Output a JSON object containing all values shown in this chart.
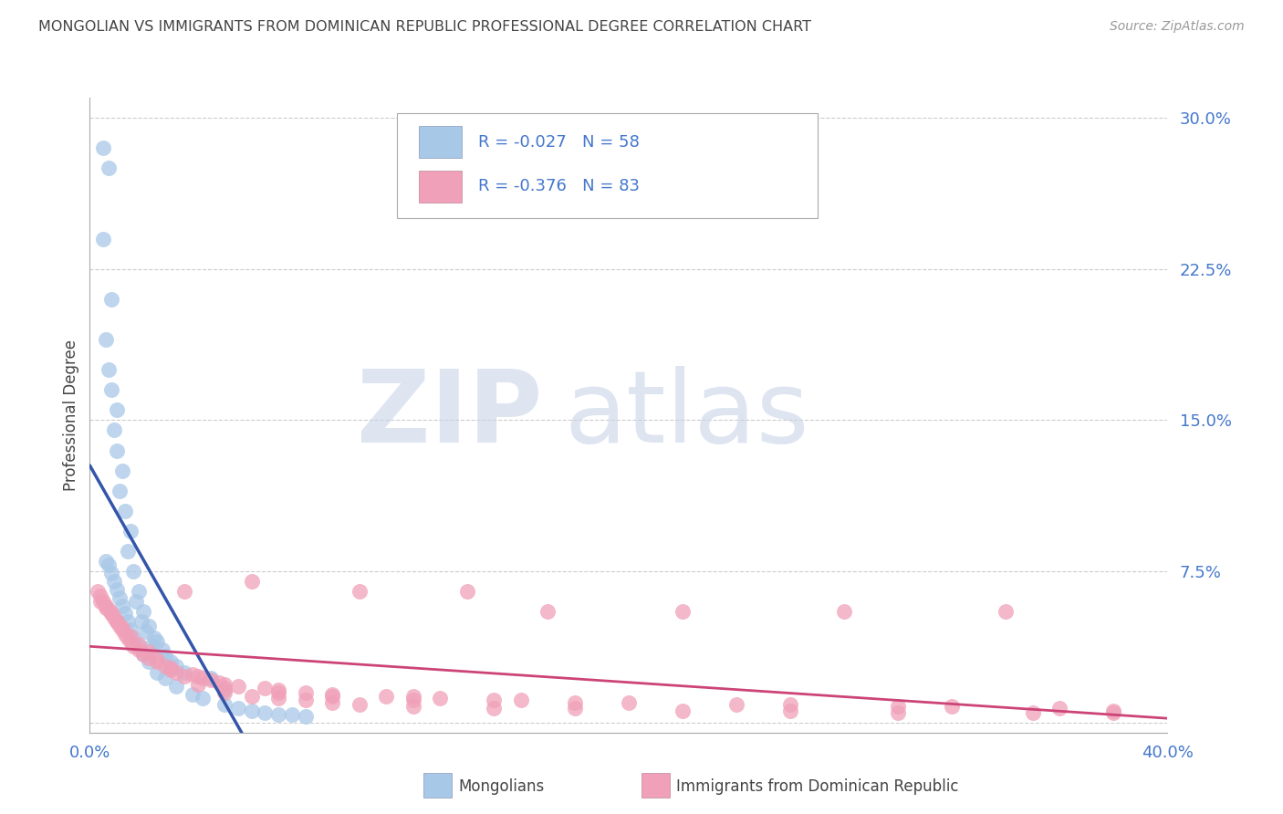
{
  "title": "MONGOLIAN VS IMMIGRANTS FROM DOMINICAN REPUBLIC PROFESSIONAL DEGREE CORRELATION CHART",
  "source": "Source: ZipAtlas.com",
  "ylabel": "Professional Degree",
  "xlim": [
    0.0,
    0.4
  ],
  "ylim": [
    -0.005,
    0.31
  ],
  "yticks": [
    0.0,
    0.075,
    0.15,
    0.225,
    0.3
  ],
  "ytick_labels": [
    "",
    "7.5%",
    "15.0%",
    "22.5%",
    "30.0%"
  ],
  "xtick_labels": [
    "0.0%",
    "40.0%"
  ],
  "color_mongolian": "#a8c8e8",
  "color_dominican": "#f0a0b8",
  "color_line_mongolian": "#3355aa",
  "color_line_dominican": "#cc4477",
  "color_tick_label": "#4477cc",
  "color_title": "#444444",
  "color_source": "#999999",
  "color_grid": "#cccccc",
  "background_color": "#ffffff",
  "watermark_zip_color": "#c8d4e8",
  "watermark_atlas_color": "#c8d4e8",
  "legend_entry1": "R = -0.027   N = 58",
  "legend_entry2": "R = -0.376   N = 83",
  "bottom_label1": "Mongolians",
  "bottom_label2": "Immigrants from Dominican Republic",
  "mongo_x": [
    0.005,
    0.007,
    0.005,
    0.008,
    0.006,
    0.007,
    0.008,
    0.01,
    0.009,
    0.01,
    0.012,
    0.011,
    0.013,
    0.015,
    0.014,
    0.016,
    0.018,
    0.017,
    0.02,
    0.019,
    0.022,
    0.021,
    0.024,
    0.025,
    0.023,
    0.027,
    0.028,
    0.03,
    0.032,
    0.035,
    0.006,
    0.007,
    0.008,
    0.009,
    0.01,
    0.011,
    0.012,
    0.013,
    0.014,
    0.015,
    0.016,
    0.018,
    0.02,
    0.022,
    0.025,
    0.028,
    0.032,
    0.038,
    0.042,
    0.05,
    0.055,
    0.06,
    0.065,
    0.07,
    0.075,
    0.08,
    0.05,
    0.045
  ],
  "mongo_y": [
    0.285,
    0.275,
    0.24,
    0.21,
    0.19,
    0.175,
    0.165,
    0.155,
    0.145,
    0.135,
    0.125,
    0.115,
    0.105,
    0.095,
    0.085,
    0.075,
    0.065,
    0.06,
    0.055,
    0.05,
    0.048,
    0.045,
    0.042,
    0.04,
    0.038,
    0.036,
    0.033,
    0.03,
    0.028,
    0.025,
    0.08,
    0.078,
    0.074,
    0.07,
    0.066,
    0.062,
    0.058,
    0.054,
    0.05,
    0.046,
    0.042,
    0.038,
    0.034,
    0.03,
    0.025,
    0.022,
    0.018,
    0.014,
    0.012,
    0.009,
    0.007,
    0.006,
    0.005,
    0.004,
    0.004,
    0.003,
    0.016,
    0.022
  ],
  "dom_x": [
    0.003,
    0.004,
    0.005,
    0.006,
    0.007,
    0.008,
    0.009,
    0.01,
    0.011,
    0.012,
    0.013,
    0.014,
    0.015,
    0.016,
    0.018,
    0.02,
    0.022,
    0.025,
    0.028,
    0.03,
    0.032,
    0.035,
    0.038,
    0.04,
    0.042,
    0.045,
    0.048,
    0.05,
    0.055,
    0.06,
    0.065,
    0.07,
    0.08,
    0.09,
    0.1,
    0.11,
    0.12,
    0.13,
    0.14,
    0.15,
    0.16,
    0.17,
    0.18,
    0.2,
    0.22,
    0.24,
    0.26,
    0.28,
    0.3,
    0.32,
    0.34,
    0.36,
    0.38,
    0.004,
    0.006,
    0.008,
    0.01,
    0.012,
    0.015,
    0.018,
    0.022,
    0.025,
    0.03,
    0.035,
    0.04,
    0.05,
    0.06,
    0.07,
    0.08,
    0.09,
    0.1,
    0.12,
    0.15,
    0.18,
    0.22,
    0.26,
    0.3,
    0.35,
    0.38,
    0.05,
    0.07,
    0.09,
    0.12
  ],
  "dom_y": [
    0.065,
    0.063,
    0.06,
    0.058,
    0.056,
    0.054,
    0.052,
    0.05,
    0.048,
    0.046,
    0.044,
    0.042,
    0.04,
    0.038,
    0.036,
    0.034,
    0.032,
    0.03,
    0.028,
    0.026,
    0.025,
    0.065,
    0.024,
    0.023,
    0.022,
    0.021,
    0.02,
    0.019,
    0.018,
    0.07,
    0.017,
    0.016,
    0.015,
    0.014,
    0.065,
    0.013,
    0.013,
    0.012,
    0.065,
    0.011,
    0.011,
    0.055,
    0.01,
    0.01,
    0.055,
    0.009,
    0.009,
    0.055,
    0.008,
    0.008,
    0.055,
    0.007,
    0.006,
    0.06,
    0.057,
    0.054,
    0.05,
    0.047,
    0.043,
    0.039,
    0.035,
    0.031,
    0.027,
    0.023,
    0.019,
    0.015,
    0.013,
    0.012,
    0.011,
    0.01,
    0.009,
    0.008,
    0.007,
    0.007,
    0.006,
    0.006,
    0.005,
    0.005,
    0.005,
    0.017,
    0.015,
    0.013,
    0.011
  ]
}
